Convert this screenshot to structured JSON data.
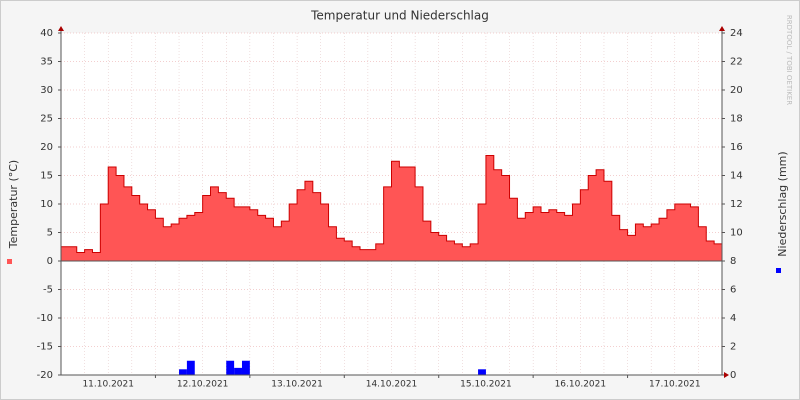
{
  "chart_data": {
    "type": "area",
    "title": "Temperatur und Niederschlag",
    "watermark": "RRDTOOL / TOBI OETIKER",
    "ylabel": "Temperatur (°C)",
    "y2label": "Niederschlag (mm)",
    "x_labels": [
      "11.10.2021",
      "12.10.2021",
      "13.10.2021",
      "14.10.2021",
      "15.10.2021",
      "16.10.2021",
      "17.10.2021"
    ],
    "ylim": [
      -20,
      40
    ],
    "yticks": [
      -20,
      -15,
      -10,
      -5,
      0,
      5,
      10,
      15,
      20,
      25,
      30,
      35,
      40
    ],
    "y2lim": [
      0,
      24
    ],
    "y2ticks": [
      0,
      2,
      4,
      6,
      8,
      10,
      12,
      14,
      16,
      18,
      20,
      22,
      24
    ],
    "grid": true,
    "series": [
      {
        "type": "area",
        "color": "#ff5555",
        "line_color": "#cc0000",
        "axis": "y",
        "values": [
          2.5,
          2.5,
          1.5,
          2,
          1.5,
          10,
          16.5,
          15,
          13,
          11.5,
          10,
          9,
          7.5,
          6,
          6.5,
          7.5,
          8,
          8.5,
          11.5,
          13,
          12,
          11,
          9.5,
          9.5,
          9,
          8,
          7.5,
          6,
          7,
          10,
          12.5,
          14,
          12,
          10,
          6,
          4,
          3.5,
          2.5,
          2,
          2,
          3,
          13,
          17.5,
          16.5,
          16.5,
          13,
          7,
          5,
          4.5,
          3.5,
          3,
          2.5,
          3,
          10,
          18.5,
          16,
          15,
          11,
          7.5,
          8.5,
          9.5,
          8.5,
          9,
          8.5,
          8,
          10,
          12.5,
          15,
          16,
          14,
          8,
          5.5,
          4.5,
          6.5,
          6,
          6.5,
          7.5,
          9,
          10,
          10,
          9.5,
          6,
          3.5,
          3
        ]
      },
      {
        "type": "bar",
        "color": "#0000ff",
        "axis": "y2",
        "values": [
          0,
          0,
          0,
          0,
          0,
          0,
          0,
          0,
          0,
          0,
          0,
          0,
          0,
          0,
          0,
          0.4,
          1.0,
          0,
          0,
          0,
          0,
          1.0,
          0.5,
          1.0,
          0,
          0,
          0,
          0,
          0,
          0,
          0,
          0,
          0,
          0,
          0,
          0,
          0,
          0,
          0,
          0,
          0,
          0,
          0,
          0,
          0,
          0,
          0,
          0,
          0,
          0,
          0,
          0,
          0,
          0.4,
          0,
          0,
          0,
          0,
          0,
          0,
          0,
          0,
          0,
          0,
          0,
          0,
          0,
          0,
          0,
          0,
          0,
          0,
          0,
          0,
          0,
          0,
          0,
          0,
          0,
          0,
          0,
          0,
          0,
          0
        ]
      }
    ]
  }
}
